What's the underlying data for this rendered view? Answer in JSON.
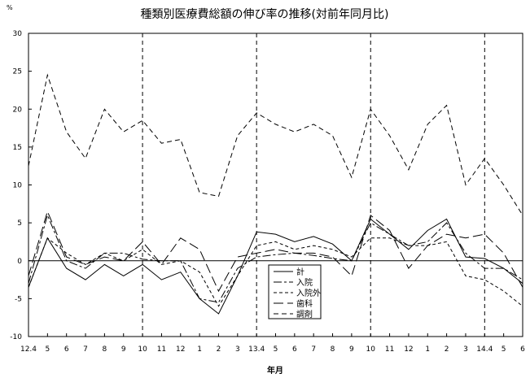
{
  "chart_data": {
    "type": "line",
    "title": "種類別医療費総額の伸び率の推移(対前年同月比)",
    "unit": "%",
    "xlabel": "年月",
    "ylabel": "",
    "ylim": [
      -10,
      30
    ],
    "yticks": [
      -10,
      -5,
      0,
      5,
      10,
      15,
      20,
      25,
      30
    ],
    "grid": false,
    "legend_position": "bottom-center",
    "categories": [
      "12.4",
      "5",
      "6",
      "7",
      "8",
      "9",
      "10",
      "11",
      "12",
      "1",
      "2",
      "3",
      "13.4",
      "5",
      "6",
      "7",
      "8",
      "9",
      "10",
      "11",
      "12",
      "1",
      "2",
      "3",
      "14.4",
      "5",
      "6"
    ],
    "dividers_after_categories": [
      "10",
      "13.4",
      "10",
      "14.4"
    ],
    "series": [
      {
        "name": "計",
        "values": [
          -3.5,
          3,
          -1,
          -2.5,
          -0.5,
          -2,
          -0.5,
          -2.5,
          -1.5,
          -5,
          -7,
          -2,
          3.8,
          3.5,
          2.5,
          3.2,
          2.2,
          0,
          5.5,
          3.5,
          1.5,
          4,
          5.5,
          0.5,
          0.3,
          -1,
          -3
        ]
      },
      {
        "name": "入院",
        "values": [
          -3,
          6,
          0,
          -1,
          1,
          1,
          0.2,
          0,
          0,
          -5,
          -5.5,
          -1,
          0.5,
          0.8,
          1,
          0.7,
          0.3,
          0,
          5,
          3.5,
          2,
          2.5,
          5,
          1,
          -1,
          -1,
          -2.5
        ]
      },
      {
        "name": "入院外",
        "values": [
          -3.5,
          3,
          1,
          -0.5,
          1,
          0,
          1.5,
          -0.5,
          0,
          -1.5,
          -6,
          -2,
          2,
          2.5,
          1.5,
          2,
          1.5,
          0.5,
          3,
          3,
          2,
          2,
          2.5,
          -2,
          -2.5,
          -4,
          -6
        ]
      },
      {
        "name": "歯科",
        "values": [
          -2,
          6.5,
          0.5,
          -0.5,
          0.5,
          0,
          2.5,
          -0.5,
          3,
          1.5,
          -4,
          0.5,
          1,
          1.5,
          1,
          1,
          0.5,
          -2,
          6,
          4,
          -1,
          2,
          3.5,
          3,
          3.5,
          1,
          -3.5
        ]
      },
      {
        "name": "調剤",
        "values": [
          12.5,
          24.5,
          17,
          13.5,
          20,
          17,
          18.5,
          15.5,
          16,
          9,
          8.5,
          16.5,
          19.5,
          18,
          17,
          18,
          16.5,
          11,
          20,
          16.5,
          12,
          18,
          20.5,
          10,
          13.5,
          10,
          6
        ]
      }
    ]
  }
}
